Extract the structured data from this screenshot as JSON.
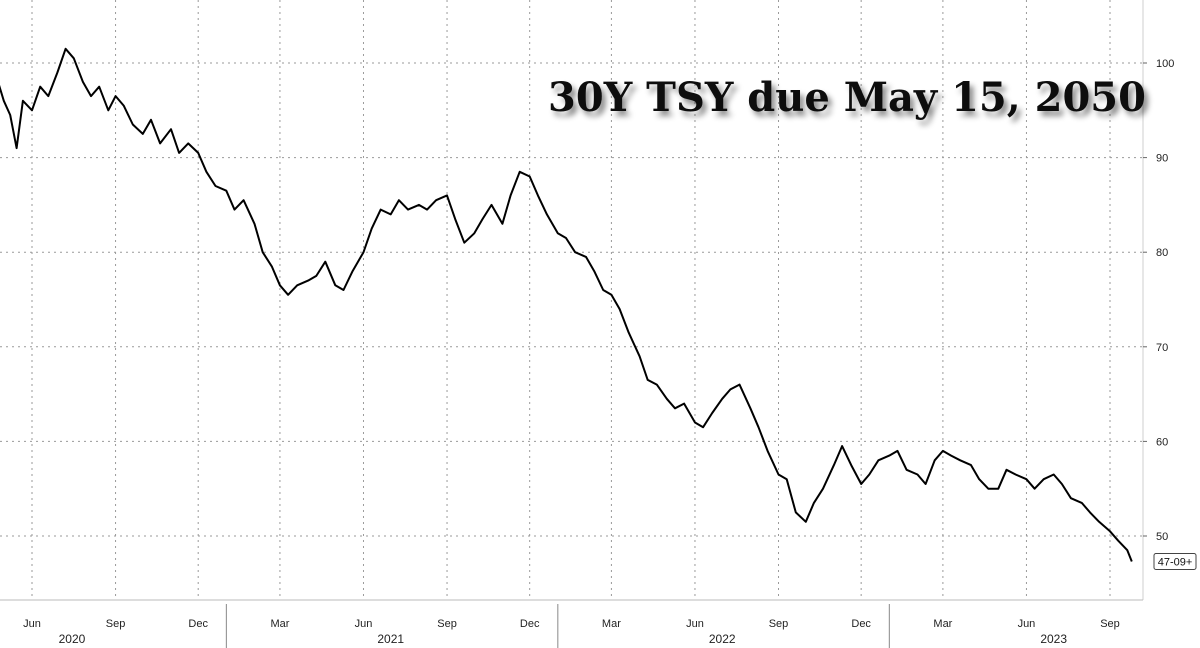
{
  "chart_data": {
    "type": "line",
    "title": "30Y TSY due May 15, 2050",
    "xlabel": "",
    "ylabel": "",
    "ylim": [
      44,
      108
    ],
    "y_ticks": [
      100,
      90,
      80,
      70,
      60,
      50
    ],
    "grid": true,
    "last_value_label": "47-09+",
    "x_month_ticks": [
      {
        "label": "Jun",
        "date": "2020-06-01"
      },
      {
        "label": "Sep",
        "date": "2020-09-01"
      },
      {
        "label": "Dec",
        "date": "2020-12-01"
      },
      {
        "label": "Mar",
        "date": "2021-03-01"
      },
      {
        "label": "Jun",
        "date": "2021-06-01"
      },
      {
        "label": "Sep",
        "date": "2021-09-01"
      },
      {
        "label": "Dec",
        "date": "2021-12-01"
      },
      {
        "label": "Mar",
        "date": "2022-03-01"
      },
      {
        "label": "Jun",
        "date": "2022-06-01"
      },
      {
        "label": "Sep",
        "date": "2022-09-01"
      },
      {
        "label": "Dec",
        "date": "2022-12-01"
      },
      {
        "label": "Mar",
        "date": "2023-03-01"
      },
      {
        "label": "Jun",
        "date": "2023-06-01"
      },
      {
        "label": "Sep",
        "date": "2023-09-01"
      }
    ],
    "x_year_labels": [
      {
        "label": "2020",
        "date": "2020-07-15"
      },
      {
        "label": "2021",
        "date": "2021-07-01"
      },
      {
        "label": "2022",
        "date": "2022-07-01"
      },
      {
        "label": "2023",
        "date": "2023-07-01"
      }
    ],
    "x_year_boundaries": [
      "2021-01-01",
      "2022-01-01",
      "2023-01-01"
    ],
    "series": [
      {
        "color": "#000000",
        "x": [
          "2020-04-23",
          "2020-05-01",
          "2020-05-08",
          "2020-05-15",
          "2020-05-22",
          "2020-06-01",
          "2020-06-10",
          "2020-06-19",
          "2020-06-29",
          "2020-07-08",
          "2020-07-17",
          "2020-07-27",
          "2020-08-05",
          "2020-08-14",
          "2020-08-24",
          "2020-09-01",
          "2020-09-10",
          "2020-09-20",
          "2020-10-01",
          "2020-10-10",
          "2020-10-20",
          "2020-11-01",
          "2020-11-10",
          "2020-11-20",
          "2020-12-01",
          "2020-12-10",
          "2020-12-20",
          "2021-01-01",
          "2021-01-10",
          "2021-01-20",
          "2021-02-01",
          "2021-02-10",
          "2021-02-20",
          "2021-03-01",
          "2021-03-10",
          "2021-03-20",
          "2021-04-01",
          "2021-04-10",
          "2021-04-20",
          "2021-05-01",
          "2021-05-10",
          "2021-05-20",
          "2021-06-01",
          "2021-06-10",
          "2021-06-20",
          "2021-07-01",
          "2021-07-10",
          "2021-07-20",
          "2021-08-01",
          "2021-08-10",
          "2021-08-20",
          "2021-09-01",
          "2021-09-10",
          "2021-09-20",
          "2021-10-01",
          "2021-10-10",
          "2021-10-20",
          "2021-11-01",
          "2021-11-10",
          "2021-11-20",
          "2021-12-01",
          "2021-12-10",
          "2021-12-20",
          "2022-01-01",
          "2022-01-10",
          "2022-01-20",
          "2022-02-01",
          "2022-02-10",
          "2022-02-20",
          "2022-03-01",
          "2022-03-10",
          "2022-03-20",
          "2022-04-01",
          "2022-04-10",
          "2022-04-20",
          "2022-05-01",
          "2022-05-10",
          "2022-05-20",
          "2022-06-01",
          "2022-06-10",
          "2022-06-20",
          "2022-07-01",
          "2022-07-10",
          "2022-07-20",
          "2022-08-01",
          "2022-08-10",
          "2022-08-20",
          "2022-09-01",
          "2022-09-10",
          "2022-09-20",
          "2022-10-01",
          "2022-10-10",
          "2022-10-20",
          "2022-11-01",
          "2022-11-10",
          "2022-11-20",
          "2022-12-01",
          "2022-12-10",
          "2022-12-20",
          "2023-01-01",
          "2023-01-10",
          "2023-01-20",
          "2023-02-01",
          "2023-02-10",
          "2023-02-20",
          "2023-03-01",
          "2023-03-10",
          "2023-03-20",
          "2023-04-01",
          "2023-04-10",
          "2023-04-20",
          "2023-05-01",
          "2023-05-10",
          "2023-05-20",
          "2023-06-01",
          "2023-06-10",
          "2023-06-20",
          "2023-07-01",
          "2023-07-10",
          "2023-07-20",
          "2023-08-01",
          "2023-08-10",
          "2023-08-20",
          "2023-09-01",
          "2023-09-10",
          "2023-09-20",
          "2023-09-25"
        ],
        "values": [
          98.5,
          96.0,
          94.5,
          91.0,
          96.0,
          95.0,
          97.5,
          96.5,
          99.0,
          101.5,
          100.5,
          98.0,
          96.5,
          97.5,
          95.0,
          96.5,
          95.5,
          93.5,
          92.5,
          94.0,
          91.5,
          93.0,
          90.5,
          91.5,
          90.5,
          88.5,
          87.0,
          86.5,
          84.5,
          85.5,
          83.0,
          80.0,
          78.5,
          76.5,
          75.5,
          76.5,
          77.0,
          77.5,
          79.0,
          76.5,
          76.0,
          78.0,
          80.0,
          82.5,
          84.5,
          84.0,
          85.5,
          84.5,
          85.0,
          84.5,
          85.5,
          86.0,
          83.5,
          81.0,
          82.0,
          83.5,
          85.0,
          83.0,
          86.0,
          88.5,
          88.0,
          86.0,
          84.0,
          82.0,
          81.5,
          80.0,
          79.5,
          78.0,
          76.0,
          75.5,
          74.0,
          71.5,
          69.0,
          66.5,
          66.0,
          64.5,
          63.5,
          64.0,
          62.0,
          61.5,
          63.0,
          64.5,
          65.5,
          66.0,
          63.5,
          61.5,
          59.0,
          56.5,
          56.0,
          52.5,
          51.5,
          53.5,
          55.0,
          57.5,
          59.5,
          57.5,
          55.5,
          56.5,
          58.0,
          58.5,
          59.0,
          57.0,
          56.5,
          55.5,
          58.0,
          59.0,
          58.5,
          58.0,
          57.5,
          56.0,
          55.0,
          55.0,
          57.0,
          56.5,
          56.0,
          55.0,
          56.0,
          56.5,
          55.5,
          54.0,
          53.5,
          52.5,
          51.5,
          50.5,
          49.5,
          48.5,
          47.3
        ]
      }
    ]
  }
}
